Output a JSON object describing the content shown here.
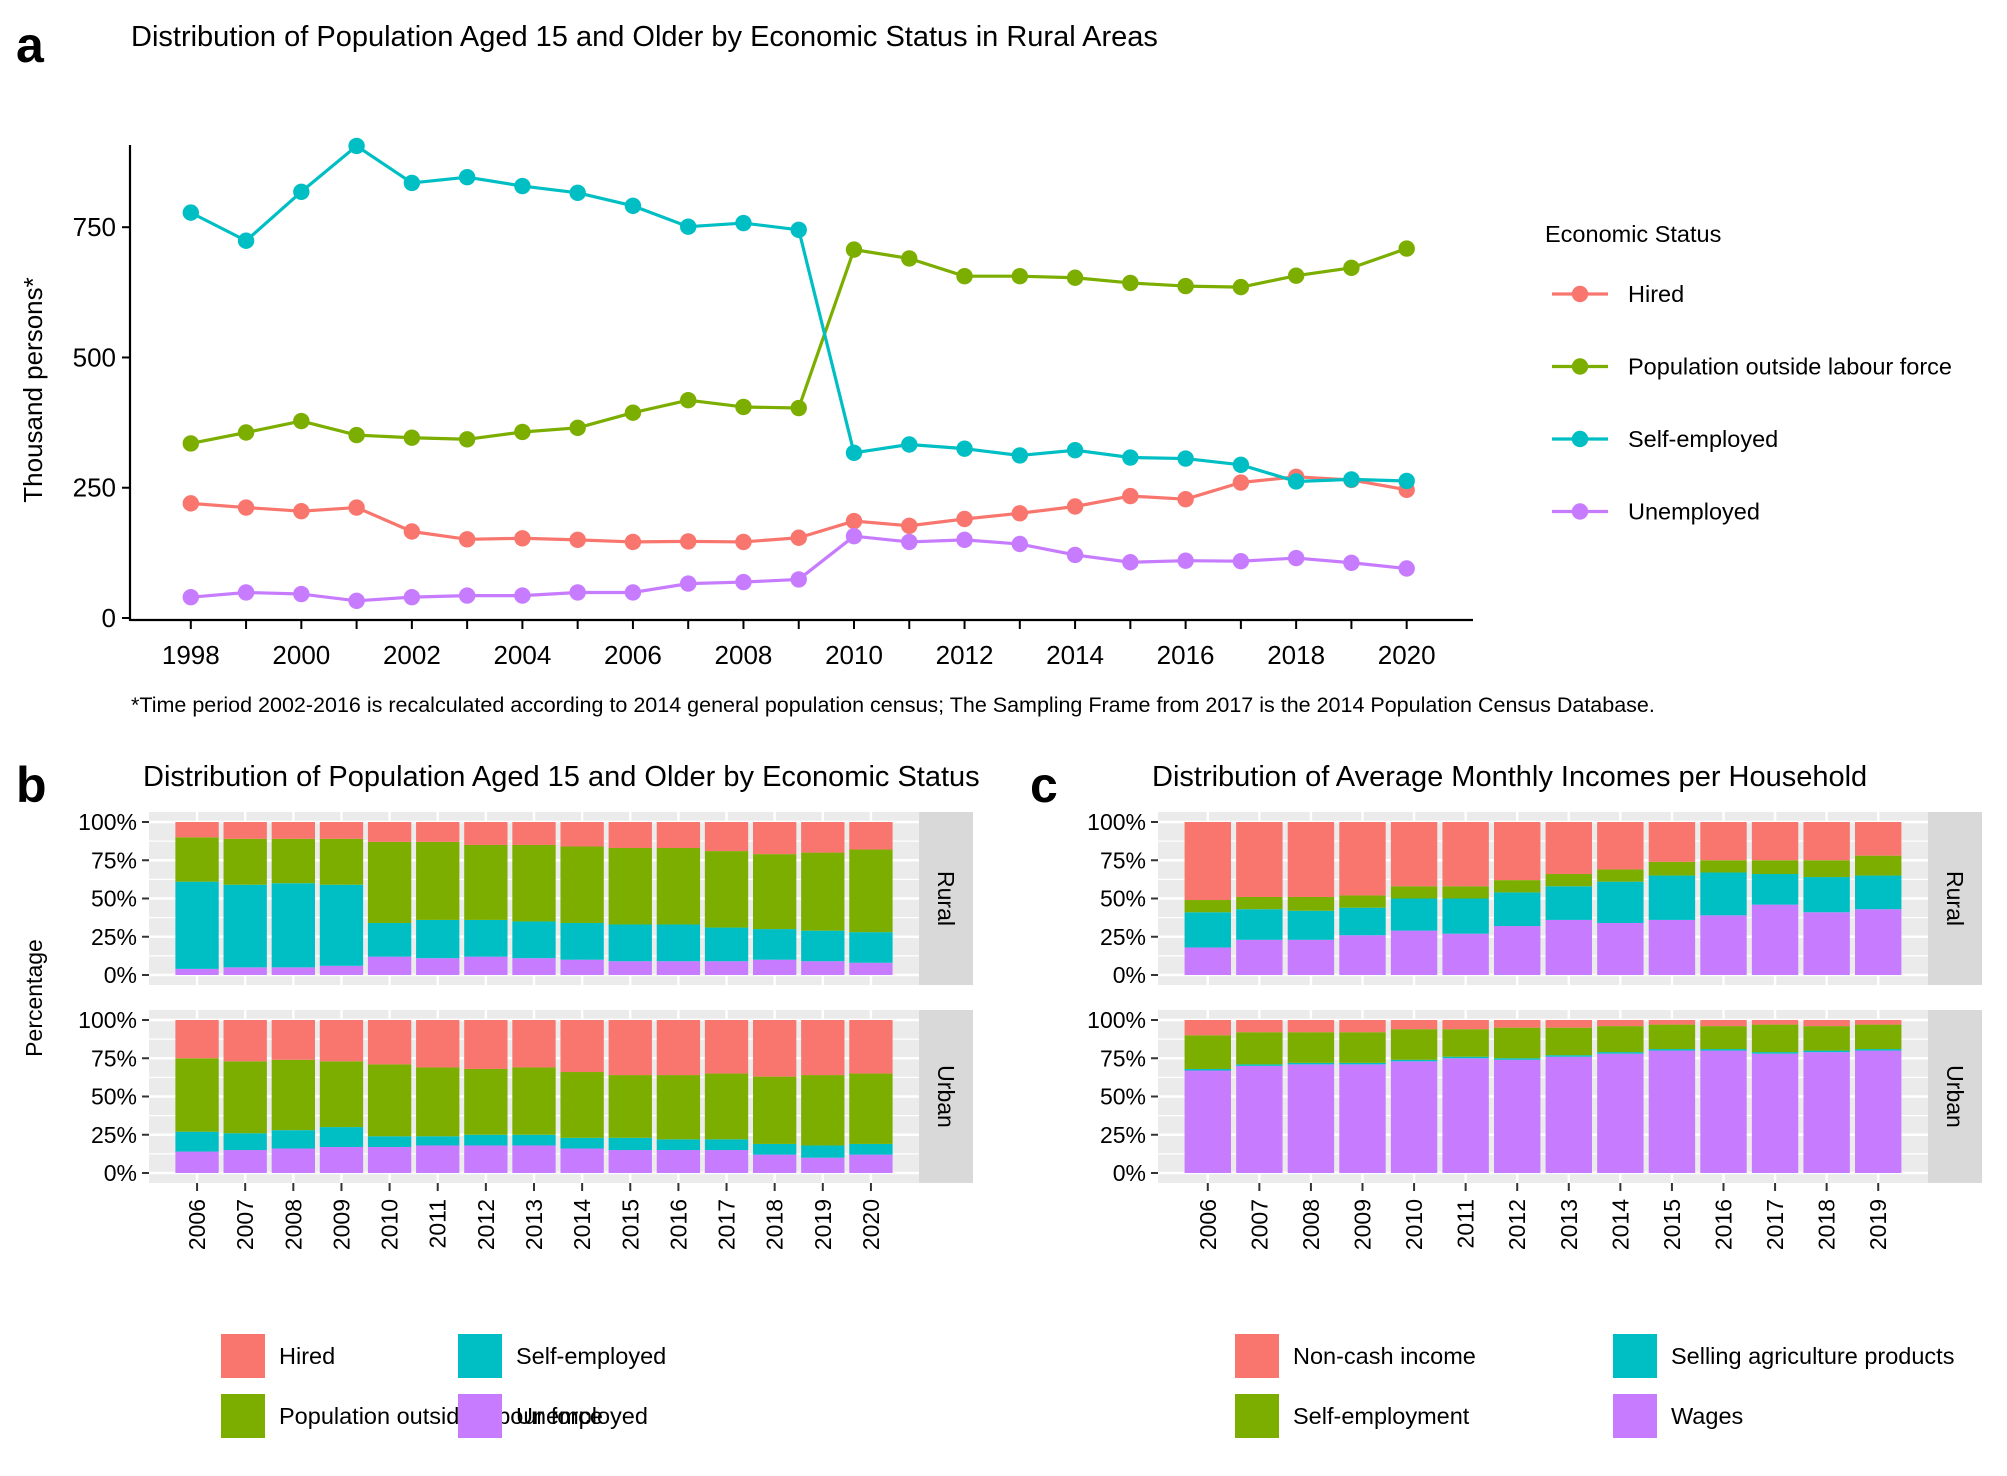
{
  "panel_labels": {
    "a": "a",
    "b": "b",
    "c": "c"
  },
  "colors": {
    "Hired": "#F8766D",
    "Population outside labour force": "#7CAE00",
    "Self-employed": "#00BFC4",
    "Unemployed": "#C77CFF",
    "Non-cash income": "#F8766D",
    "Self-employment": "#7CAE00",
    "Selling agriculture products": "#00BFC4",
    "Wages": "#C77CFF"
  },
  "chart_data": [
    {
      "id": "a",
      "type": "line",
      "title": "Distribution of Population Aged 15 and Older by Economic Status in Rural Areas",
      "xlabel": "",
      "ylabel": "Thousand persons*",
      "x": [
        1998,
        1999,
        2000,
        2001,
        2002,
        2003,
        2004,
        2005,
        2006,
        2007,
        2008,
        2009,
        2010,
        2011,
        2012,
        2013,
        2014,
        2015,
        2016,
        2017,
        2018,
        2019,
        2020
      ],
      "xticks": [
        "1998",
        "2000",
        "2002",
        "2004",
        "2006",
        "2008",
        "2010",
        "2012",
        "2014",
        "2016",
        "2018",
        "2020"
      ],
      "yticks": [
        "0",
        "250",
        "500",
        "750"
      ],
      "ylim": [
        0,
        950
      ],
      "legend_title": "Economic Status",
      "legend_position": "right",
      "footnote": "*Time period 2002-2016 is recalculated according to 2014 general population census; The Sampling Frame from 2017 is the 2014 Population Census Database.",
      "series": [
        {
          "name": "Hired",
          "values": [
            220,
            212,
            205,
            212,
            166,
            151,
            153,
            150,
            146,
            147,
            146,
            154,
            186,
            177,
            190,
            201,
            214,
            234,
            228,
            260,
            271,
            265,
            246
          ]
        },
        {
          "name": "Population outside labour force",
          "values": [
            335,
            356,
            378,
            351,
            346,
            343,
            357,
            365,
            394,
            418,
            405,
            403,
            707,
            690,
            656,
            656,
            653,
            643,
            637,
            635,
            657,
            672,
            709
          ]
        },
        {
          "name": "Self-employed",
          "values": [
            778,
            724,
            818,
            906,
            835,
            846,
            829,
            816,
            791,
            751,
            758,
            745,
            317,
            333,
            325,
            312,
            322,
            308,
            306,
            294,
            262,
            266,
            263
          ]
        },
        {
          "name": "Unemployed",
          "values": [
            40,
            49,
            46,
            33,
            40,
            43,
            43,
            49,
            49,
            66,
            69,
            74,
            157,
            146,
            150,
            142,
            121,
            107,
            110,
            109,
            115,
            106,
            95
          ]
        }
      ],
      "grid": false
    },
    {
      "id": "b",
      "type": "bar",
      "stacked": "percent",
      "title": "Distribution of Population Aged 15 and Older by Economic Status",
      "ylabel": "Percentage",
      "xlabel": "",
      "yticks": [
        "0%",
        "25%",
        "50%",
        "75%",
        "100%"
      ],
      "categories": [
        "2006",
        "2007",
        "2008",
        "2009",
        "2010",
        "2011",
        "2012",
        "2013",
        "2014",
        "2015",
        "2016",
        "2017",
        "2018",
        "2019",
        "2020"
      ],
      "stack_order": [
        "Unemployed",
        "Self-employed",
        "Population outside labour force",
        "Hired"
      ],
      "legend_position": "bottom",
      "legend": [
        "Hired",
        "Self-employed",
        "Population outside labour force",
        "Unemployed"
      ],
      "facets": [
        {
          "name": "Rural",
          "series": [
            {
              "name": "Unemployed",
              "values": [
                4,
                5,
                5,
                6,
                12,
                11,
                12,
                11,
                10,
                9,
                9,
                9,
                10,
                9,
                8
              ]
            },
            {
              "name": "Self-employed",
              "values": [
                57,
                54,
                55,
                53,
                22,
                25,
                24,
                24,
                24,
                24,
                24,
                22,
                20,
                20,
                20
              ]
            },
            {
              "name": "Population outside labour force",
              "values": [
                29,
                30,
                29,
                30,
                53,
                51,
                49,
                50,
                50,
                50,
                50,
                50,
                49,
                51,
                54
              ]
            },
            {
              "name": "Hired",
              "values": [
                10,
                11,
                11,
                11,
                13,
                13,
                15,
                15,
                16,
                17,
                17,
                19,
                21,
                20,
                18
              ]
            }
          ]
        },
        {
          "name": "Urban",
          "series": [
            {
              "name": "Unemployed",
              "values": [
                14,
                15,
                16,
                17,
                17,
                18,
                18,
                18,
                16,
                15,
                15,
                15,
                12,
                10,
                12
              ]
            },
            {
              "name": "Self-employed",
              "values": [
                13,
                11,
                12,
                13,
                7,
                6,
                7,
                7,
                7,
                8,
                7,
                7,
                7,
                8,
                7
              ]
            },
            {
              "name": "Population outside labour force",
              "values": [
                48,
                47,
                46,
                43,
                47,
                45,
                43,
                44,
                43,
                41,
                42,
                43,
                44,
                46,
                46
              ]
            },
            {
              "name": "Hired",
              "values": [
                25,
                27,
                26,
                27,
                29,
                31,
                32,
                31,
                34,
                36,
                36,
                35,
                37,
                36,
                35
              ]
            }
          ]
        }
      ]
    },
    {
      "id": "c",
      "type": "bar",
      "stacked": "percent",
      "title": "Distribution of Average Monthly Incomes per Household",
      "ylabel": "",
      "xlabel": "",
      "yticks": [
        "0%",
        "25%",
        "50%",
        "75%",
        "100%"
      ],
      "categories": [
        "2006",
        "2007",
        "2008",
        "2009",
        "2010",
        "2011",
        "2012",
        "2013",
        "2014",
        "2015",
        "2016",
        "2017",
        "2018",
        "2019"
      ],
      "stack_order": [
        "Wages",
        "Selling agriculture products",
        "Self-employment",
        "Non-cash income"
      ],
      "legend_position": "bottom",
      "legend": [
        "Non-cash income",
        "Selling agriculture products",
        "Self-employment",
        "Wages"
      ],
      "facets": [
        {
          "name": "Rural",
          "series": [
            {
              "name": "Wages",
              "values": [
                18,
                23,
                23,
                26,
                29,
                27,
                32,
                36,
                34,
                36,
                39,
                46,
                41,
                43
              ]
            },
            {
              "name": "Selling agriculture products",
              "values": [
                23,
                20,
                19,
                18,
                21,
                23,
                22,
                22,
                27,
                29,
                28,
                20,
                23,
                22
              ]
            },
            {
              "name": "Self-employment",
              "values": [
                8,
                8,
                9,
                8,
                8,
                8,
                8,
                8,
                8,
                9,
                8,
                9,
                11,
                13
              ]
            },
            {
              "name": "Non-cash income",
              "values": [
                51,
                49,
                49,
                48,
                42,
                42,
                38,
                34,
                31,
                26,
                25,
                25,
                25,
                22
              ]
            }
          ]
        },
        {
          "name": "Urban",
          "series": [
            {
              "name": "Wages",
              "values": [
                67,
                70,
                71,
                71,
                73,
                75,
                74,
                76,
                78,
                80,
                80,
                78,
                79,
                80
              ]
            },
            {
              "name": "Selling agriculture products",
              "values": [
                1,
                1,
                1,
                1,
                1,
                1,
                1,
                1,
                1,
                1,
                1,
                1,
                1,
                1
              ]
            },
            {
              "name": "Self-employment",
              "values": [
                22,
                21,
                20,
                20,
                20,
                18,
                20,
                18,
                17,
                16,
                15,
                18,
                16,
                16
              ]
            },
            {
              "name": "Non-cash income",
              "values": [
                10,
                8,
                8,
                8,
                6,
                6,
                5,
                5,
                4,
                3,
                4,
                3,
                4,
                3
              ]
            }
          ]
        }
      ]
    }
  ]
}
